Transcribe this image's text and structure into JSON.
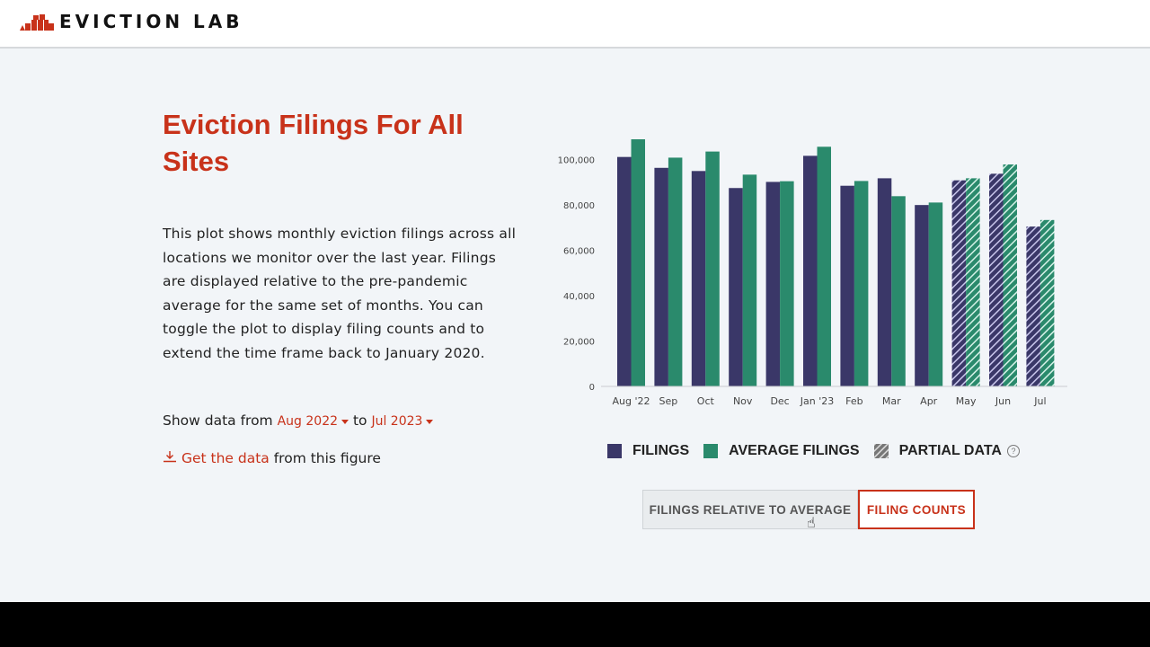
{
  "header": {
    "logo_text": "EVICTION LAB"
  },
  "main": {
    "title": "Eviction Filings For All Sites",
    "description": "This plot shows monthly eviction filings across all locations we monitor over the last year. Filings are displayed relative to the pre-pandemic average for the same set of months. You can toggle the plot to display filing counts and to extend the time frame back to January 2020.",
    "range": {
      "prefix": "Show data from",
      "from": "Aug 2022",
      "middle": "to",
      "to": "Jul 2023"
    },
    "get_data": {
      "link": "Get the data",
      "suffix": "from this figure",
      "icon": "download-icon"
    }
  },
  "legend": {
    "filings": "FILINGS",
    "average": "AVERAGE FILINGS",
    "partial": "PARTIAL DATA",
    "help": "?"
  },
  "toggle": {
    "relative": "FILINGS RELATIVE TO AVERAGE",
    "counts": "FILING COUNTS",
    "active": "counts"
  },
  "colors": {
    "filings": "#3a3768",
    "average": "#2a8a6c",
    "accent": "#c8321a"
  },
  "chart_data": {
    "type": "bar",
    "categories": [
      "Aug '22",
      "Sep",
      "Oct",
      "Nov",
      "Dec",
      "Jan '23",
      "Feb",
      "Mar",
      "Apr",
      "May",
      "Jun",
      "Jul"
    ],
    "series": [
      {
        "name": "FILINGS",
        "values": [
          101200,
          96400,
          95000,
          87500,
          90200,
          101700,
          88500,
          91800,
          80000,
          90900,
          93800,
          70500
        ]
      },
      {
        "name": "AVERAGE FILINGS",
        "values": [
          109000,
          100900,
          103600,
          93400,
          90500,
          105700,
          90600,
          83900,
          81100,
          91800,
          97900,
          73400
        ]
      }
    ],
    "partial": [
      false,
      false,
      false,
      false,
      false,
      false,
      false,
      false,
      false,
      true,
      true,
      true
    ],
    "yticks": [
      "0",
      "20,000",
      "40,000",
      "60,000",
      "80,000",
      "100,000"
    ],
    "ytick_values": [
      0,
      20000,
      40000,
      60000,
      80000,
      100000
    ],
    "ylim": [
      0,
      110000
    ],
    "grid": false,
    "legend": "bottom"
  }
}
